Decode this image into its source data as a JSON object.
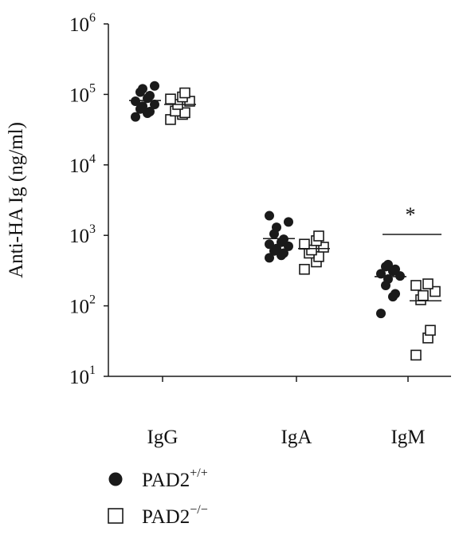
{
  "chart_data": {
    "type": "scatter",
    "ylabel": "Anti-HA Ig (ng/ml)",
    "yscale": "log",
    "ylim": [
      10,
      1000000
    ],
    "ytick_labels": [
      {
        "base": "10",
        "exp": "1"
      },
      {
        "base": "10",
        "exp": "2"
      },
      {
        "base": "10",
        "exp": "3"
      },
      {
        "base": "10",
        "exp": "4"
      },
      {
        "base": "10",
        "exp": "5"
      },
      {
        "base": "10",
        "exp": "6"
      }
    ],
    "categories": [
      "IgG",
      "IgA",
      "IgM"
    ],
    "series": [
      {
        "name": "PAD2",
        "name_sup": "+/+",
        "marker": "filled-circle",
        "color": "#1a1a1a",
        "groups": [
          {
            "category": "IgG",
            "values": [
              48000,
              54000,
              57000,
              62000,
              68000,
              72000,
              80000,
              88000,
              96000,
              108000,
              120000,
              132000
            ],
            "line": 82000
          },
          {
            "category": "IgA",
            "values": [
              480,
              520,
              560,
              600,
              650,
              700,
              750,
              800,
              880,
              1050,
              1300,
              1550,
              1900
            ],
            "line": 900
          },
          {
            "category": "IgM",
            "values": [
              78,
              135,
              148,
              195,
              240,
              265,
              285,
              310,
              330,
              360,
              385
            ],
            "line": 260
          }
        ]
      },
      {
        "name": "PAD2",
        "name_sup": "−/−",
        "marker": "open-square",
        "color": "#1a1a1a",
        "groups": [
          {
            "category": "IgG",
            "values": [
              44000,
              52000,
              55000,
              58000,
              72000,
              80000,
              86000,
              92000,
              105000
            ],
            "line": 72000
          },
          {
            "category": "IgA",
            "values": [
              330,
              420,
              500,
              560,
              620,
              680,
              750,
              840,
              980
            ],
            "line": 650
          },
          {
            "category": "IgM",
            "values": [
              20,
              35,
              45,
              122,
              140,
              160,
              195,
              205
            ],
            "line": 118
          }
        ]
      }
    ],
    "annotations": [
      {
        "text": "*",
        "category": "IgM"
      }
    ],
    "legend": {
      "position": "bottom-left",
      "entries": [
        {
          "label": "PAD2",
          "sup": "+/+",
          "marker": "filled-circle"
        },
        {
          "label": "PAD2",
          "sup": "−/−",
          "marker": "open-square"
        }
      ]
    },
    "grid": false
  }
}
